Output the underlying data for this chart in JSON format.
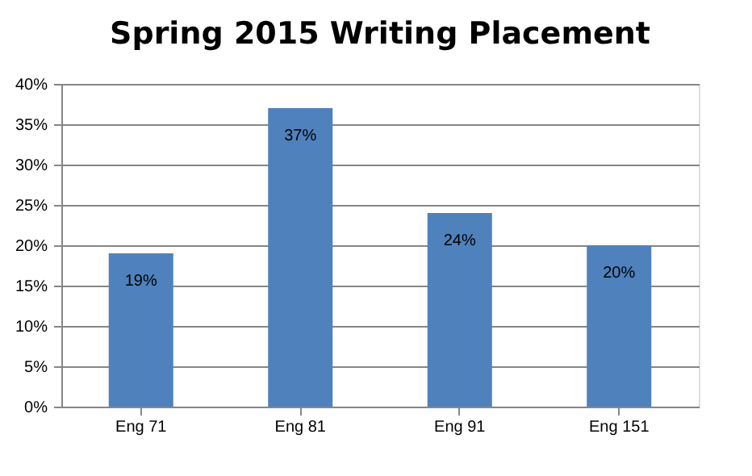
{
  "chart_data": {
    "type": "bar",
    "title": "Spring 2015 Writing Placement",
    "categories": [
      "Eng 71",
      "Eng 81",
      "Eng 91",
      "Eng 151"
    ],
    "values": [
      19,
      37,
      24,
      20
    ],
    "color": "#4f81bd",
    "value_labels": [
      "19%",
      "37%",
      "24%",
      "20%"
    ],
    "ylim": [
      0,
      40
    ],
    "yticks": [
      {
        "value": 0,
        "label": "0%"
      },
      {
        "value": 5,
        "label": "5%"
      },
      {
        "value": 10,
        "label": "10%"
      },
      {
        "value": 15,
        "label": "15%"
      },
      {
        "value": 20,
        "label": "20%"
      },
      {
        "value": 25,
        "label": "25%"
      },
      {
        "value": 30,
        "label": "30%"
      },
      {
        "value": 35,
        "label": "35%"
      },
      {
        "value": 40,
        "label": "40%"
      }
    ],
    "grid": "y"
  }
}
